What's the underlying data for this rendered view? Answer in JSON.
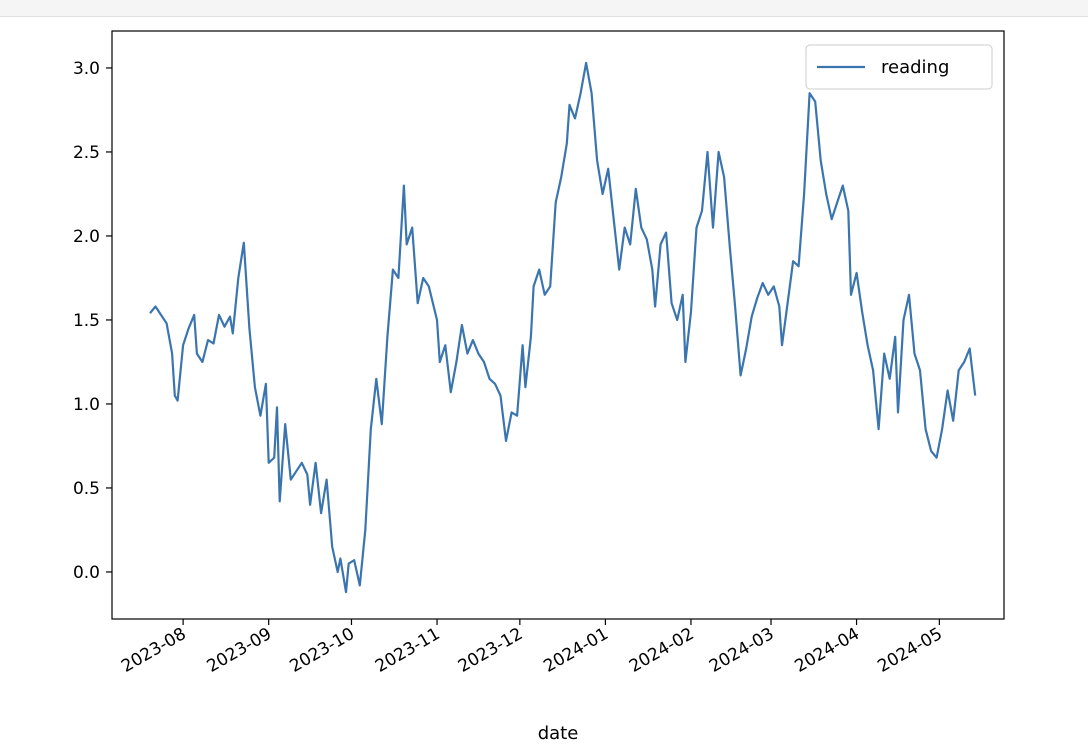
{
  "chart_data": {
    "type": "line",
    "xlabel": "date",
    "ylabel": "",
    "x_range": [
      "2023-07-20",
      "2024-05-15"
    ],
    "ylim": [
      -0.28,
      3.22
    ],
    "yticks": [
      "0.0",
      "0.5",
      "1.0",
      "1.5",
      "2.0",
      "2.5",
      "3.0"
    ],
    "xticks": [
      "2023-08",
      "2023-09",
      "2023-10",
      "2023-11",
      "2023-12",
      "2024-01",
      "2024-02",
      "2024-03",
      "2024-04",
      "2024-05"
    ],
    "grid": false,
    "legend_position": "top-right",
    "series": [
      {
        "name": "reading",
        "color": "#3b75af",
        "points": [
          [
            "2023-07-20",
            1.54
          ],
          [
            "2023-07-22",
            1.58
          ],
          [
            "2023-07-24",
            1.53
          ],
          [
            "2023-07-26",
            1.48
          ],
          [
            "2023-07-28",
            1.3
          ],
          [
            "2023-07-29",
            1.05
          ],
          [
            "2023-07-30",
            1.02
          ],
          [
            "2023-08-01",
            1.35
          ],
          [
            "2023-08-03",
            1.45
          ],
          [
            "2023-08-05",
            1.53
          ],
          [
            "2023-08-06",
            1.3
          ],
          [
            "2023-08-08",
            1.25
          ],
          [
            "2023-08-10",
            1.38
          ],
          [
            "2023-08-12",
            1.36
          ],
          [
            "2023-08-14",
            1.53
          ],
          [
            "2023-08-16",
            1.46
          ],
          [
            "2023-08-18",
            1.52
          ],
          [
            "2023-08-19",
            1.42
          ],
          [
            "2023-08-21",
            1.75
          ],
          [
            "2023-08-23",
            1.96
          ],
          [
            "2023-08-25",
            1.45
          ],
          [
            "2023-08-27",
            1.1
          ],
          [
            "2023-08-29",
            0.93
          ],
          [
            "2023-08-31",
            1.12
          ],
          [
            "2023-09-01",
            0.65
          ],
          [
            "2023-09-03",
            0.68
          ],
          [
            "2023-09-04",
            0.98
          ],
          [
            "2023-09-05",
            0.42
          ],
          [
            "2023-09-07",
            0.88
          ],
          [
            "2023-09-09",
            0.55
          ],
          [
            "2023-09-11",
            0.6
          ],
          [
            "2023-09-13",
            0.65
          ],
          [
            "2023-09-15",
            0.58
          ],
          [
            "2023-09-16",
            0.4
          ],
          [
            "2023-09-18",
            0.65
          ],
          [
            "2023-09-20",
            0.35
          ],
          [
            "2023-09-22",
            0.55
          ],
          [
            "2023-09-24",
            0.15
          ],
          [
            "2023-09-26",
            0.0
          ],
          [
            "2023-09-27",
            0.08
          ],
          [
            "2023-09-29",
            -0.12
          ],
          [
            "2023-09-30",
            0.05
          ],
          [
            "2023-10-02",
            0.07
          ],
          [
            "2023-10-04",
            -0.08
          ],
          [
            "2023-10-06",
            0.25
          ],
          [
            "2023-10-08",
            0.85
          ],
          [
            "2023-10-10",
            1.15
          ],
          [
            "2023-10-12",
            0.88
          ],
          [
            "2023-10-14",
            1.4
          ],
          [
            "2023-10-16",
            1.8
          ],
          [
            "2023-10-18",
            1.75
          ],
          [
            "2023-10-20",
            2.3
          ],
          [
            "2023-10-21",
            1.95
          ],
          [
            "2023-10-23",
            2.05
          ],
          [
            "2023-10-25",
            1.6
          ],
          [
            "2023-10-27",
            1.75
          ],
          [
            "2023-10-29",
            1.7
          ],
          [
            "2023-11-01",
            1.5
          ],
          [
            "2023-11-02",
            1.25
          ],
          [
            "2023-11-04",
            1.35
          ],
          [
            "2023-11-06",
            1.07
          ],
          [
            "2023-11-08",
            1.25
          ],
          [
            "2023-11-10",
            1.47
          ],
          [
            "2023-11-12",
            1.3
          ],
          [
            "2023-11-14",
            1.38
          ],
          [
            "2023-11-16",
            1.3
          ],
          [
            "2023-11-18",
            1.25
          ],
          [
            "2023-11-20",
            1.15
          ],
          [
            "2023-11-22",
            1.12
          ],
          [
            "2023-11-24",
            1.05
          ],
          [
            "2023-11-26",
            0.78
          ],
          [
            "2023-11-28",
            0.95
          ],
          [
            "2023-11-30",
            0.93
          ],
          [
            "2023-12-02",
            1.35
          ],
          [
            "2023-12-03",
            1.1
          ],
          [
            "2023-12-05",
            1.4
          ],
          [
            "2023-12-06",
            1.7
          ],
          [
            "2023-12-08",
            1.8
          ],
          [
            "2023-12-10",
            1.65
          ],
          [
            "2023-12-12",
            1.7
          ],
          [
            "2023-12-14",
            2.2
          ],
          [
            "2023-12-16",
            2.35
          ],
          [
            "2023-12-18",
            2.55
          ],
          [
            "2023-12-19",
            2.78
          ],
          [
            "2023-12-21",
            2.7
          ],
          [
            "2023-12-23",
            2.85
          ],
          [
            "2023-12-25",
            3.03
          ],
          [
            "2023-12-27",
            2.85
          ],
          [
            "2023-12-29",
            2.45
          ],
          [
            "2023-12-31",
            2.25
          ],
          [
            "2024-01-02",
            2.4
          ],
          [
            "2024-01-04",
            2.1
          ],
          [
            "2024-01-06",
            1.8
          ],
          [
            "2024-01-08",
            2.05
          ],
          [
            "2024-01-10",
            1.95
          ],
          [
            "2024-01-12",
            2.28
          ],
          [
            "2024-01-14",
            2.05
          ],
          [
            "2024-01-16",
            1.98
          ],
          [
            "2024-01-18",
            1.8
          ],
          [
            "2024-01-19",
            1.58
          ],
          [
            "2024-01-21",
            1.95
          ],
          [
            "2024-01-23",
            2.02
          ],
          [
            "2024-01-25",
            1.6
          ],
          [
            "2024-01-27",
            1.5
          ],
          [
            "2024-01-29",
            1.65
          ],
          [
            "2024-01-30",
            1.25
          ],
          [
            "2024-02-01",
            1.55
          ],
          [
            "2024-02-03",
            2.05
          ],
          [
            "2024-02-05",
            2.15
          ],
          [
            "2024-02-07",
            2.5
          ],
          [
            "2024-02-09",
            2.05
          ],
          [
            "2024-02-11",
            2.5
          ],
          [
            "2024-02-13",
            2.35
          ],
          [
            "2024-02-15",
            1.95
          ],
          [
            "2024-02-17",
            1.58
          ],
          [
            "2024-02-19",
            1.17
          ],
          [
            "2024-02-21",
            1.33
          ],
          [
            "2024-02-23",
            1.52
          ],
          [
            "2024-02-25",
            1.63
          ],
          [
            "2024-02-27",
            1.72
          ],
          [
            "2024-02-29",
            1.65
          ],
          [
            "2024-03-02",
            1.7
          ],
          [
            "2024-03-04",
            1.58
          ],
          [
            "2024-03-05",
            1.35
          ],
          [
            "2024-03-07",
            1.6
          ],
          [
            "2024-03-09",
            1.85
          ],
          [
            "2024-03-11",
            1.82
          ],
          [
            "2024-03-13",
            2.25
          ],
          [
            "2024-03-15",
            2.85
          ],
          [
            "2024-03-17",
            2.8
          ],
          [
            "2024-03-19",
            2.45
          ],
          [
            "2024-03-21",
            2.25
          ],
          [
            "2024-03-23",
            2.1
          ],
          [
            "2024-03-25",
            2.2
          ],
          [
            "2024-03-27",
            2.3
          ],
          [
            "2024-03-29",
            2.15
          ],
          [
            "2024-03-30",
            1.65
          ],
          [
            "2024-04-01",
            1.78
          ],
          [
            "2024-04-03",
            1.55
          ],
          [
            "2024-04-05",
            1.35
          ],
          [
            "2024-04-07",
            1.2
          ],
          [
            "2024-04-09",
            0.85
          ],
          [
            "2024-04-11",
            1.3
          ],
          [
            "2024-04-13",
            1.15
          ],
          [
            "2024-04-15",
            1.4
          ],
          [
            "2024-04-16",
            0.95
          ],
          [
            "2024-04-18",
            1.5
          ],
          [
            "2024-04-20",
            1.65
          ],
          [
            "2024-04-22",
            1.3
          ],
          [
            "2024-04-24",
            1.2
          ],
          [
            "2024-04-26",
            0.85
          ],
          [
            "2024-04-28",
            0.72
          ],
          [
            "2024-04-30",
            0.68
          ],
          [
            "2024-05-02",
            0.85
          ],
          [
            "2024-05-04",
            1.08
          ],
          [
            "2024-05-06",
            0.9
          ],
          [
            "2024-05-08",
            1.2
          ],
          [
            "2024-05-10",
            1.25
          ],
          [
            "2024-05-12",
            1.33
          ],
          [
            "2024-05-14",
            1.05
          ]
        ]
      }
    ]
  }
}
